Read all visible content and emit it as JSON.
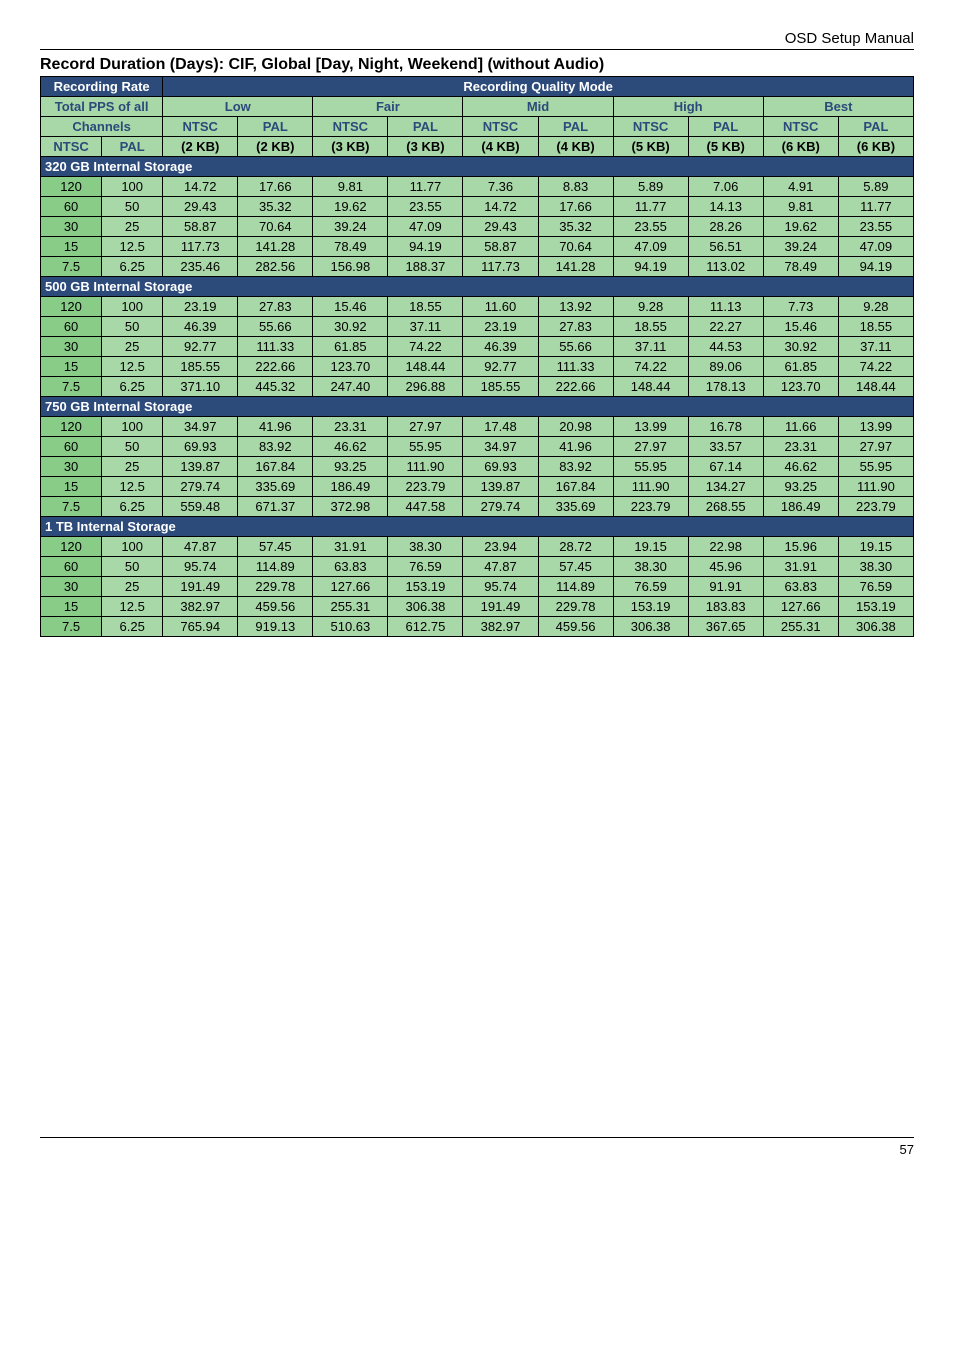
{
  "header_right": "OSD  Setup  Manual",
  "title": "Record Duration (Days): CIF, Global [Day, Night, Weekend] (without Audio)",
  "page_number": "57",
  "col_group_labels": {
    "recording_rate": "Recording Rate",
    "recording_quality": "Recording Quality Mode",
    "total_pps": "Total PPS of all",
    "channels": "Channels",
    "low": "Low",
    "fair": "Fair",
    "mid": "Mid",
    "high": "High",
    "best": "Best",
    "ntsc": "NTSC",
    "pal": "PAL"
  },
  "kb": {
    "k2a": "(2 KB)",
    "k2b": "(2 KB)",
    "k3a": "(3 KB)",
    "k3b": "(3 KB)",
    "k4a": "(4 KB)",
    "k4b": "(4 KB)",
    "k5a": "(5 KB)",
    "k5b": "(5 KB)",
    "k6a": "(6 KB)",
    "k6b": "(6 KB)"
  },
  "sections": [
    {
      "label": "320 GB Internal Storage",
      "rows": [
        {
          "ntsc": "120",
          "pal": "100",
          "v": [
            "14.72",
            "17.66",
            "9.81",
            "11.77",
            "7.36",
            "8.83",
            "5.89",
            "7.06",
            "4.91",
            "5.89"
          ]
        },
        {
          "ntsc": "60",
          "pal": "50",
          "v": [
            "29.43",
            "35.32",
            "19.62",
            "23.55",
            "14.72",
            "17.66",
            "11.77",
            "14.13",
            "9.81",
            "11.77"
          ]
        },
        {
          "ntsc": "30",
          "pal": "25",
          "v": [
            "58.87",
            "70.64",
            "39.24",
            "47.09",
            "29.43",
            "35.32",
            "23.55",
            "28.26",
            "19.62",
            "23.55"
          ]
        },
        {
          "ntsc": "15",
          "pal": "12.5",
          "v": [
            "117.73",
            "141.28",
            "78.49",
            "94.19",
            "58.87",
            "70.64",
            "47.09",
            "56.51",
            "39.24",
            "47.09"
          ]
        },
        {
          "ntsc": "7.5",
          "pal": "6.25",
          "v": [
            "235.46",
            "282.56",
            "156.98",
            "188.37",
            "117.73",
            "141.28",
            "94.19",
            "113.02",
            "78.49",
            "94.19"
          ]
        }
      ]
    },
    {
      "label": "500 GB Internal Storage",
      "rows": [
        {
          "ntsc": "120",
          "pal": "100",
          "v": [
            "23.19",
            "27.83",
            "15.46",
            "18.55",
            "11.60",
            "13.92",
            "9.28",
            "11.13",
            "7.73",
            "9.28"
          ]
        },
        {
          "ntsc": "60",
          "pal": "50",
          "v": [
            "46.39",
            "55.66",
            "30.92",
            "37.11",
            "23.19",
            "27.83",
            "18.55",
            "22.27",
            "15.46",
            "18.55"
          ]
        },
        {
          "ntsc": "30",
          "pal": "25",
          "v": [
            "92.77",
            "111.33",
            "61.85",
            "74.22",
            "46.39",
            "55.66",
            "37.11",
            "44.53",
            "30.92",
            "37.11"
          ]
        },
        {
          "ntsc": "15",
          "pal": "12.5",
          "v": [
            "185.55",
            "222.66",
            "123.70",
            "148.44",
            "92.77",
            "111.33",
            "74.22",
            "89.06",
            "61.85",
            "74.22"
          ]
        },
        {
          "ntsc": "7.5",
          "pal": "6.25",
          "v": [
            "371.10",
            "445.32",
            "247.40",
            "296.88",
            "185.55",
            "222.66",
            "148.44",
            "178.13",
            "123.70",
            "148.44"
          ]
        }
      ]
    },
    {
      "label": "750 GB Internal Storage",
      "rows": [
        {
          "ntsc": "120",
          "pal": "100",
          "v": [
            "34.97",
            "41.96",
            "23.31",
            "27.97",
            "17.48",
            "20.98",
            "13.99",
            "16.78",
            "11.66",
            "13.99"
          ]
        },
        {
          "ntsc": "60",
          "pal": "50",
          "v": [
            "69.93",
            "83.92",
            "46.62",
            "55.95",
            "34.97",
            "41.96",
            "27.97",
            "33.57",
            "23.31",
            "27.97"
          ]
        },
        {
          "ntsc": "30",
          "pal": "25",
          "v": [
            "139.87",
            "167.84",
            "93.25",
            "111.90",
            "69.93",
            "83.92",
            "55.95",
            "67.14",
            "46.62",
            "55.95"
          ]
        },
        {
          "ntsc": "15",
          "pal": "12.5",
          "v": [
            "279.74",
            "335.69",
            "186.49",
            "223.79",
            "139.87",
            "167.84",
            "111.90",
            "134.27",
            "93.25",
            "111.90"
          ]
        },
        {
          "ntsc": "7.5",
          "pal": "6.25",
          "v": [
            "559.48",
            "671.37",
            "372.98",
            "447.58",
            "279.74",
            "335.69",
            "223.79",
            "268.55",
            "186.49",
            "223.79"
          ]
        }
      ]
    },
    {
      "label": "1 TB Internal Storage",
      "rows": [
        {
          "ntsc": "120",
          "pal": "100",
          "v": [
            "47.87",
            "57.45",
            "31.91",
            "38.30",
            "23.94",
            "28.72",
            "19.15",
            "22.98",
            "15.96",
            "19.15"
          ]
        },
        {
          "ntsc": "60",
          "pal": "50",
          "v": [
            "95.74",
            "114.89",
            "63.83",
            "76.59",
            "47.87",
            "57.45",
            "38.30",
            "45.96",
            "31.91",
            "38.30"
          ]
        },
        {
          "ntsc": "30",
          "pal": "25",
          "v": [
            "191.49",
            "229.78",
            "127.66",
            "153.19",
            "95.74",
            "114.89",
            "76.59",
            "91.91",
            "63.83",
            "76.59"
          ]
        },
        {
          "ntsc": "15",
          "pal": "12.5",
          "v": [
            "382.97",
            "459.56",
            "255.31",
            "306.38",
            "191.49",
            "229.78",
            "153.19",
            "183.83",
            "127.66",
            "153.19"
          ]
        },
        {
          "ntsc": "7.5",
          "pal": "6.25",
          "v": [
            "765.94",
            "919.13",
            "510.63",
            "612.75",
            "382.97",
            "459.56",
            "306.38",
            "367.65",
            "255.31",
            "306.38"
          ]
        }
      ]
    }
  ]
}
